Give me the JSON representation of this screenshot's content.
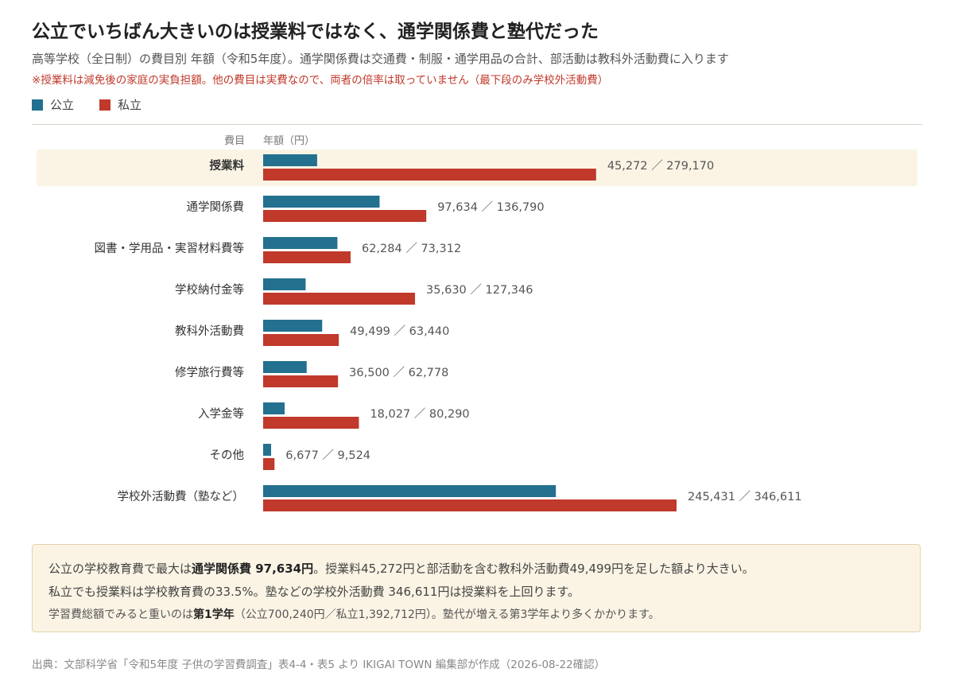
{
  "header": {
    "title": "公立でいちばん大きいのは授業料ではなく、通学関係費と塾代だった",
    "subtitle": "高等学校（全日制）の費目別 年額（令和5年度）。通学関係費は交通費・制服・通学用品の合計、部活動は教科外活動費に入ります",
    "note": "※授業料は減免後の家庭の実負担額。他の費目は実費なので、両者の倍率は取っていません（最下段のみ学校外活動費）"
  },
  "legend": {
    "public_label": "公立",
    "private_label": "私立"
  },
  "columns": {
    "category_head": "費目",
    "value_head": "年額（円）"
  },
  "colors": {
    "public": "#23708f",
    "private": "#c0392b",
    "highlight": "#fbf4e5"
  },
  "chart_data": {
    "type": "bar",
    "orientation": "horizontal",
    "categories": [
      "授業料",
      "通学関係費",
      "図書・学用品・実習材料費等",
      "学校納付金等",
      "教科外活動費",
      "修学旅行費等",
      "入学金等",
      "その他",
      "学校外活動費（塾など）"
    ],
    "highlighted_category": "授業料",
    "series": [
      {
        "name": "公立",
        "values": [
          45272,
          97634,
          62284,
          35630,
          49499,
          36500,
          18027,
          6677,
          245431
        ]
      },
      {
        "name": "私立",
        "values": [
          279170,
          136790,
          73312,
          127346,
          63440,
          62778,
          80290,
          9524,
          346611
        ]
      }
    ],
    "value_labels": [
      "45,272 ／ 279,170",
      "97,634 ／ 136,790",
      "62,284 ／ 73,312",
      "35,630 ／ 127,346",
      "49,499 ／ 63,440",
      "36,500 ／ 62,778",
      "18,027 ／ 80,290",
      "6,677 ／ 9,524",
      "245,431 ／ 346,611"
    ],
    "xlim": [
      0,
      346611
    ],
    "xlabel": "年額（円）",
    "ylabel": "費目",
    "grid": false
  },
  "summary": {
    "line1": {
      "pre": "公立の学校教育費で最大は",
      "bold": "通学関係費 97,634円",
      "post": "。授業料45,272円と部活動を含む教科外活動費49,499円を足した額より大きい。"
    },
    "line2": "私立でも授業料は学校教育費の33.5%。塾などの学校外活動費 346,611円は授業料を上回ります。",
    "line3": {
      "pre": "学習費総額でみると重いのは",
      "bold": "第1学年",
      "post": "（公立700,240円／私立1,392,712円）。塾代が増える第3学年より多くかかります。"
    }
  },
  "source": "出典：文部科学省「令和5年度 子供の学習費調査」表4-4・表5 より IKIGAI TOWN 編集部が作成（2026-08-22確認）"
}
